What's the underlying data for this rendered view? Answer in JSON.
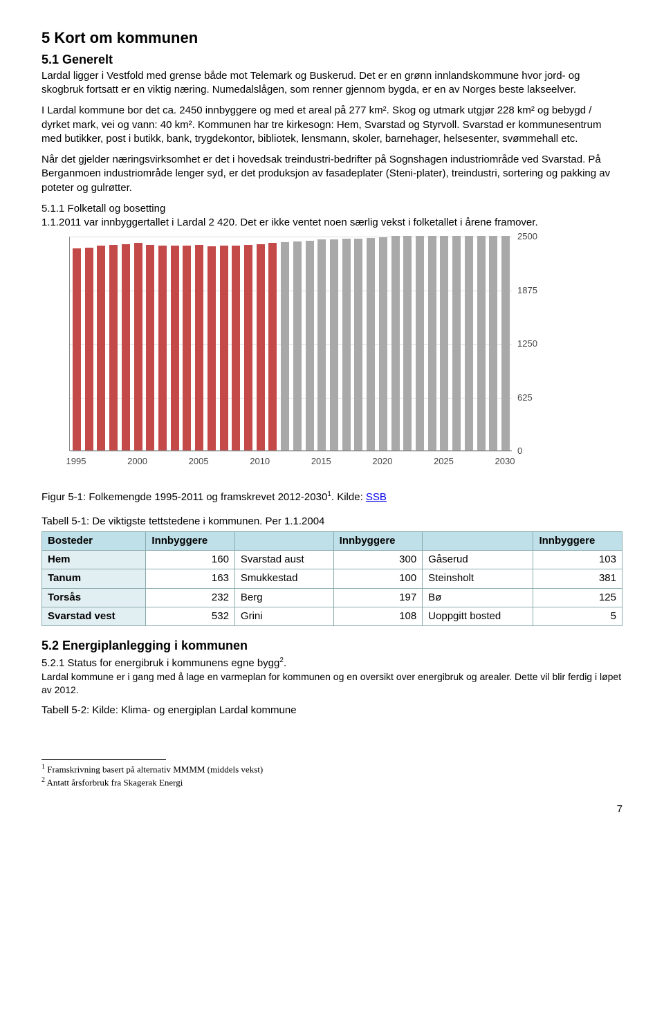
{
  "section5": {
    "heading": "5   Kort om kommunen",
    "sub1_heading": "5.1   Generelt",
    "body1": "Lardal ligger i Vestfold med grense både mot Telemark og Buskerud. Det er en grønn innlandskommune hvor jord- og skogbruk fortsatt er en viktig næring. Numedalslågen, som renner gjennom bygda, er en av Norges beste lakseelver.",
    "body2": "I Lardal kommune bor det ca. 2450 innbyggere og med et areal på 277 km². Skog og utmark utgjør 228 km² og bebygd / dyrket mark, vei og vann: 40 km². Kommunen har tre kirkesogn: Hem, Svarstad og Styrvoll. Svarstad er kommunesentrum med butikker, post i butikk, bank, trygdekontor, bibliotek, lensmann, skoler, barnehager, helsesenter, svømmehall etc.",
    "body3": "Når det gjelder næringsvirksomhet er det i hovedsak treindustri-bedrifter på Sognshagen industriområde ved Svarstad. På Berganmoen industriområde lenger syd, er det produksjon av fasadeplater (Steni-plater),  treindustri, sortering og pakking av poteter og gulrøtter.",
    "sub511_heading": "5.1.1   Folketall og bosetting",
    "body511": "1.1.2011 var innbyggertallet i Lardal 2 420. Det er ikke ventet noen særlig vekst i folketallet i årene framover."
  },
  "chart": {
    "y_max": 2500,
    "y_ticks": [
      0,
      625,
      1250,
      1875,
      2500
    ],
    "x_ticks": [
      1995,
      2000,
      2005,
      2010,
      2015,
      2020,
      2025,
      2030
    ],
    "x_start": 1995,
    "x_end": 2030,
    "bars": [
      {
        "x": 1995,
        "v": 2360,
        "c": "#c44a4a"
      },
      {
        "x": 1996,
        "v": 2370,
        "c": "#c44a4a"
      },
      {
        "x": 1997,
        "v": 2390,
        "c": "#c44a4a"
      },
      {
        "x": 1998,
        "v": 2400,
        "c": "#c44a4a"
      },
      {
        "x": 1999,
        "v": 2410,
        "c": "#c44a4a"
      },
      {
        "x": 2000,
        "v": 2420,
        "c": "#c44a4a"
      },
      {
        "x": 2001,
        "v": 2400,
        "c": "#c44a4a"
      },
      {
        "x": 2002,
        "v": 2395,
        "c": "#c44a4a"
      },
      {
        "x": 2003,
        "v": 2390,
        "c": "#c44a4a"
      },
      {
        "x": 2004,
        "v": 2395,
        "c": "#c44a4a"
      },
      {
        "x": 2005,
        "v": 2400,
        "c": "#c44a4a"
      },
      {
        "x": 2006,
        "v": 2380,
        "c": "#c44a4a"
      },
      {
        "x": 2007,
        "v": 2395,
        "c": "#c44a4a"
      },
      {
        "x": 2008,
        "v": 2395,
        "c": "#c44a4a"
      },
      {
        "x": 2009,
        "v": 2400,
        "c": "#c44a4a"
      },
      {
        "x": 2010,
        "v": 2410,
        "c": "#c44a4a"
      },
      {
        "x": 2011,
        "v": 2420,
        "c": "#c44a4a"
      },
      {
        "x": 2012,
        "v": 2430,
        "c": "#a9a9a9"
      },
      {
        "x": 2013,
        "v": 2440,
        "c": "#a9a9a9"
      },
      {
        "x": 2014,
        "v": 2450,
        "c": "#a9a9a9"
      },
      {
        "x": 2015,
        "v": 2460,
        "c": "#a9a9a9"
      },
      {
        "x": 2016,
        "v": 2465,
        "c": "#a9a9a9"
      },
      {
        "x": 2017,
        "v": 2470,
        "c": "#a9a9a9"
      },
      {
        "x": 2018,
        "v": 2475,
        "c": "#a9a9a9"
      },
      {
        "x": 2019,
        "v": 2480,
        "c": "#a9a9a9"
      },
      {
        "x": 2020,
        "v": 2490,
        "c": "#a9a9a9"
      },
      {
        "x": 2021,
        "v": 2500,
        "c": "#a9a9a9"
      },
      {
        "x": 2022,
        "v": 2510,
        "c": "#a9a9a9"
      },
      {
        "x": 2023,
        "v": 2520,
        "c": "#a9a9a9"
      },
      {
        "x": 2024,
        "v": 2530,
        "c": "#a9a9a9"
      },
      {
        "x": 2025,
        "v": 2540,
        "c": "#a9a9a9"
      },
      {
        "x": 2026,
        "v": 2550,
        "c": "#a9a9a9"
      },
      {
        "x": 2027,
        "v": 2560,
        "c": "#a9a9a9"
      },
      {
        "x": 2028,
        "v": 2570,
        "c": "#a9a9a9"
      },
      {
        "x": 2029,
        "v": 2580,
        "c": "#a9a9a9"
      },
      {
        "x": 2030,
        "v": 2590,
        "c": "#a9a9a9"
      }
    ],
    "caption_prefix": "Figur 5-1: Folkemengde 1995-2011 og framskrevet 2012-2030",
    "caption_sup": "1",
    "caption_mid": ". Kilde: ",
    "caption_link": "SSB"
  },
  "table51": {
    "caption": "Tabell 5-1: De viktigste tettstedene i kommunen. Per 1.1.2004",
    "headers": [
      "Bosteder",
      "Innbyggere",
      "",
      "Innbyggere",
      "",
      "Innbyggere"
    ],
    "rows": [
      [
        "Hem",
        "160",
        "Svarstad aust",
        "300",
        "Gåserud",
        "103"
      ],
      [
        "Tanum",
        "163",
        "Smukkestad",
        "100",
        "Steinsholt",
        "381"
      ],
      [
        "Torsås",
        "232",
        "Berg",
        "197",
        "Bø",
        "125"
      ],
      [
        "Svarstad vest",
        "532",
        "Grini",
        "108",
        "Uoppgitt bosted",
        "5"
      ]
    ]
  },
  "section52": {
    "heading": "5.2   Energiplanlegging i kommunen",
    "sub521_heading_prefix": "5.2.1   Status for energibruk i kommunens egne bygg",
    "sub521_sup": "2",
    "sub521_suffix": ".",
    "body": "Lardal kommune er i gang med å lage en varmeplan for kommunen og en oversikt over energibruk og arealer. Dette vil blir ferdig i løpet av 2012.",
    "table52_caption": "Tabell 5-2: Kilde: Klima- og energiplan Lardal kommune"
  },
  "footnotes": {
    "f1_sup": "1",
    "f1": " Framskrivning basert på alternativ MMMM (middels vekst)",
    "f2_sup": "2",
    "f2": " Antatt årsforbruk fra Skagerak Energi"
  },
  "pagenum": "7"
}
